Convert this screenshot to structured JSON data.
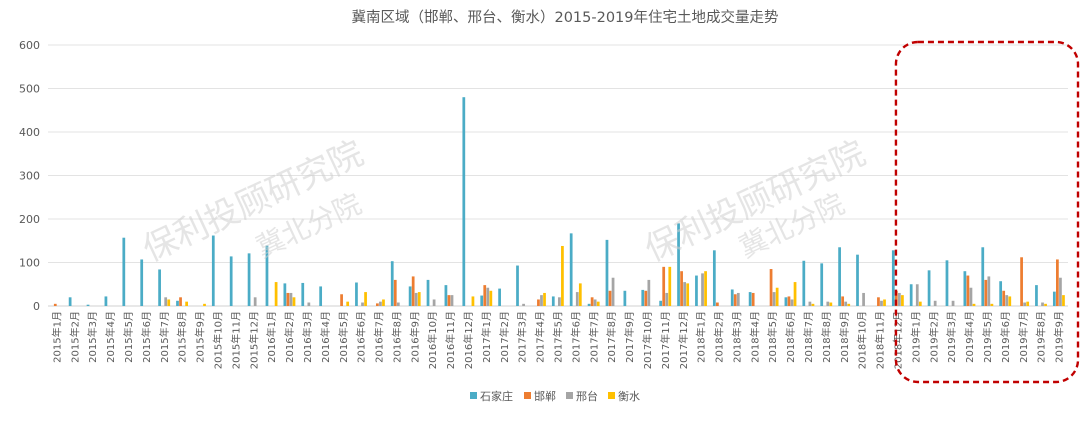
{
  "chart_data": {
    "type": "bar",
    "title": "冀南区域（邯郸、邢台、衡水）2015-2019年住宅土地成交量走势",
    "xlabel": "",
    "ylabel": "",
    "ylim": [
      0,
      600
    ],
    "yticks": [
      0,
      100,
      200,
      300,
      400,
      500,
      600
    ],
    "grid": true,
    "legend_position": "bottom",
    "categories": [
      "2015年1月",
      "2015年2月",
      "2015年3月",
      "2015年4月",
      "2015年5月",
      "2015年6月",
      "2015年7月",
      "2015年8月",
      "2015年9月",
      "2015年10月",
      "2015年11月",
      "2015年12月",
      "2016年1月",
      "2016年2月",
      "2016年3月",
      "2016年4月",
      "2016年5月",
      "2016年6月",
      "2016年7月",
      "2016年8月",
      "2016年9月",
      "2016年10月",
      "2016年11月",
      "2016年12月",
      "2017年1月",
      "2017年2月",
      "2017年3月",
      "2017年4月",
      "2017年5月",
      "2017年6月",
      "2017年7月",
      "2017年8月",
      "2017年9月",
      "2017年10月",
      "2017年11月",
      "2017年12月",
      "2018年1月",
      "2018年2月",
      "2018年3月",
      "2018年4月",
      "2018年5月",
      "2018年6月",
      "2018年7月",
      "2018年8月",
      "2018年9月",
      "2018年10月",
      "2018年11月",
      "2018年12月",
      "2019年1月",
      "2019年2月",
      "2019年3月",
      "2019年4月",
      "2019年5月",
      "2019年6月",
      "2019年7月",
      "2019年8月",
      "2019年9月"
    ],
    "series": [
      {
        "name": "石家庄",
        "color": "#4bacc6",
        "values": [
          0,
          20,
          3,
          22,
          157,
          107,
          84,
          12,
          0,
          162,
          114,
          121,
          139,
          52,
          53,
          45,
          0,
          54,
          0,
          103,
          45,
          60,
          48,
          480,
          24,
          40,
          93,
          0,
          22,
          167,
          5,
          152,
          35,
          37,
          12,
          190,
          70,
          128,
          38,
          32,
          0,
          20,
          104,
          98,
          135,
          118,
          0,
          128,
          50,
          82,
          105,
          80,
          135,
          57,
          0,
          48,
          33
        ]
      },
      {
        "name": "邯郸",
        "color": "#ed7d31",
        "values": [
          5,
          0,
          0,
          0,
          0,
          0,
          0,
          20,
          0,
          0,
          0,
          0,
          0,
          30,
          0,
          0,
          27,
          0,
          6,
          60,
          68,
          0,
          25,
          0,
          48,
          0,
          0,
          15,
          0,
          0,
          20,
          35,
          0,
          35,
          90,
          80,
          0,
          8,
          27,
          30,
          85,
          22,
          0,
          0,
          22,
          0,
          20,
          35,
          0,
          0,
          0,
          70,
          60,
          35,
          112,
          0,
          107
        ]
      },
      {
        "name": "邢台",
        "color": "#a5a5a5",
        "values": [
          0,
          0,
          0,
          0,
          0,
          0,
          20,
          0,
          0,
          0,
          0,
          20,
          0,
          30,
          8,
          0,
          0,
          8,
          10,
          8,
          30,
          15,
          25,
          0,
          42,
          0,
          5,
          25,
          20,
          32,
          15,
          65,
          0,
          60,
          30,
          55,
          75,
          0,
          30,
          0,
          32,
          15,
          10,
          10,
          10,
          30,
          12,
          30,
          50,
          12,
          12,
          42,
          68,
          25,
          8,
          8,
          65
        ]
      },
      {
        "name": "衡水",
        "color": "#ffc000",
        "values": [
          0,
          0,
          0,
          0,
          0,
          0,
          15,
          10,
          5,
          0,
          0,
          0,
          55,
          20,
          0,
          0,
          10,
          32,
          15,
          0,
          32,
          0,
          0,
          22,
          35,
          0,
          0,
          30,
          138,
          52,
          10,
          0,
          0,
          0,
          90,
          52,
          80,
          0,
          0,
          0,
          42,
          55,
          5,
          8,
          5,
          0,
          15,
          25,
          10,
          0,
          0,
          5,
          5,
          22,
          10,
          5,
          25
        ]
      }
    ],
    "annotations": [
      {
        "kind": "highlight-box",
        "style": "red dashed rounded rectangle",
        "covers_categories": [
          "2019年1月",
          "2019年9月"
        ]
      }
    ],
    "watermarks": [
      "保利投顾研究院",
      "冀北分院",
      "保利投顾研究院",
      "冀北分院"
    ]
  }
}
